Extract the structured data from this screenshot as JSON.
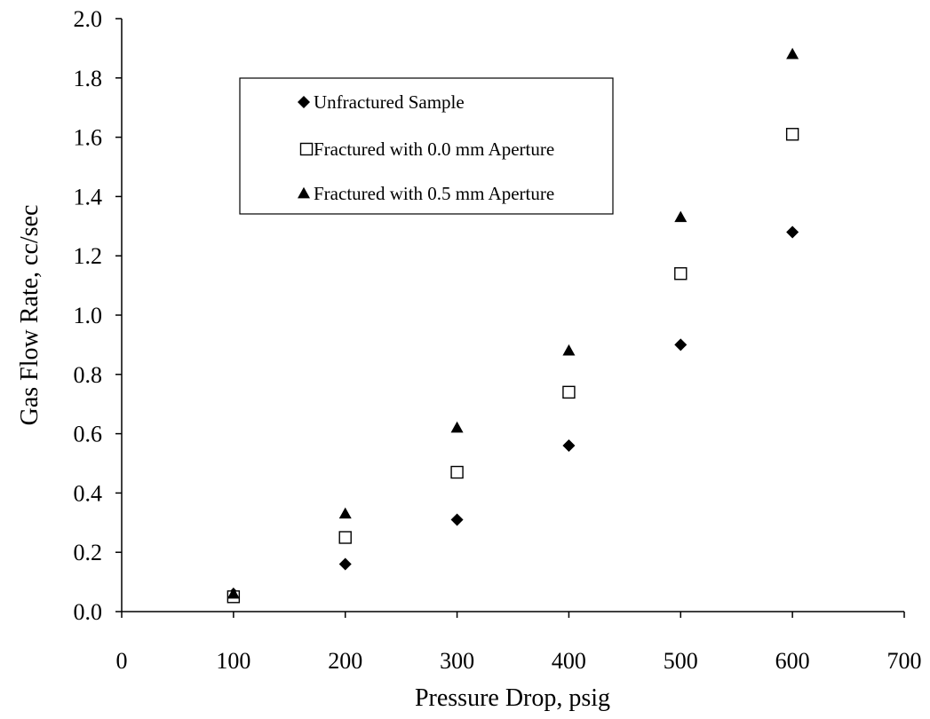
{
  "chart_data": {
    "type": "scatter",
    "title": "",
    "xlabel": "Pressure Drop, psig",
    "ylabel": "Gas Flow Rate, cc/sec",
    "xlim": [
      0,
      700
    ],
    "ylim": [
      0,
      2.0
    ],
    "xticks": [
      0,
      100,
      200,
      300,
      400,
      500,
      600,
      700
    ],
    "xtick_labels": [
      "0",
      "100",
      "200",
      "300",
      "400",
      "500",
      "600",
      "700"
    ],
    "yticks": [
      0,
      0.2,
      0.4,
      0.6,
      0.8,
      1.0,
      1.2,
      1.4,
      1.6,
      1.8,
      2.0
    ],
    "ytick_labels": [
      "0.0",
      "0.2",
      "0.4",
      "0.6",
      "0.8",
      "1.0",
      "1.2",
      "1.4",
      "1.6",
      "1.8",
      "2.0"
    ],
    "grid": false,
    "legend_position": "top-left",
    "series": [
      {
        "name": "Unfractured Sample",
        "marker": "diamond",
        "color": "#000000",
        "x": [
          100,
          200,
          300,
          400,
          500,
          600
        ],
        "y": [
          0.06,
          0.16,
          0.31,
          0.56,
          0.9,
          1.28
        ]
      },
      {
        "name": "Fractured with 0.0 mm Aperture",
        "marker": "square-open",
        "color": "#000000",
        "x": [
          100,
          200,
          300,
          400,
          500,
          600
        ],
        "y": [
          0.05,
          0.25,
          0.47,
          0.74,
          1.14,
          1.61
        ]
      },
      {
        "name": "Fractured with 0.5 mm Aperture",
        "marker": "triangle",
        "color": "#000000",
        "x": [
          100,
          200,
          300,
          400,
          500,
          600
        ],
        "y": [
          0.06,
          0.33,
          0.62,
          0.88,
          1.33,
          1.88
        ]
      }
    ]
  }
}
